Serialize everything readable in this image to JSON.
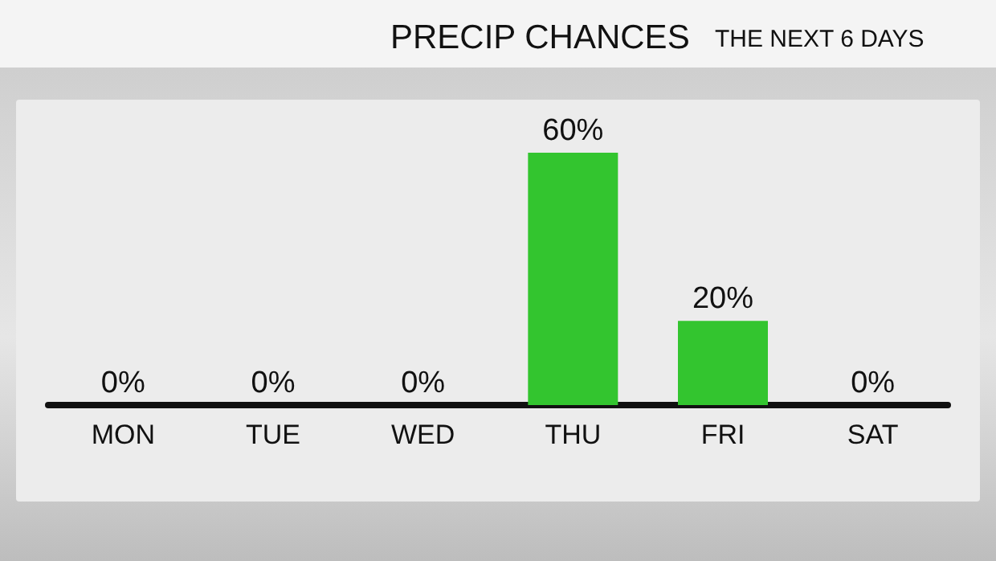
{
  "chart_data": {
    "type": "bar",
    "title": "PRECIP CHANCES",
    "subtitle": "THE NEXT 6 DAYS",
    "categories": [
      "MON",
      "TUE",
      "WED",
      "THU",
      "FRI",
      "SAT"
    ],
    "values": [
      0,
      0,
      0,
      60,
      20,
      0
    ],
    "value_labels": [
      "0%",
      "0%",
      "0%",
      "60%",
      "20%",
      "0%"
    ],
    "color": "#33c52f",
    "grid": false
  }
}
